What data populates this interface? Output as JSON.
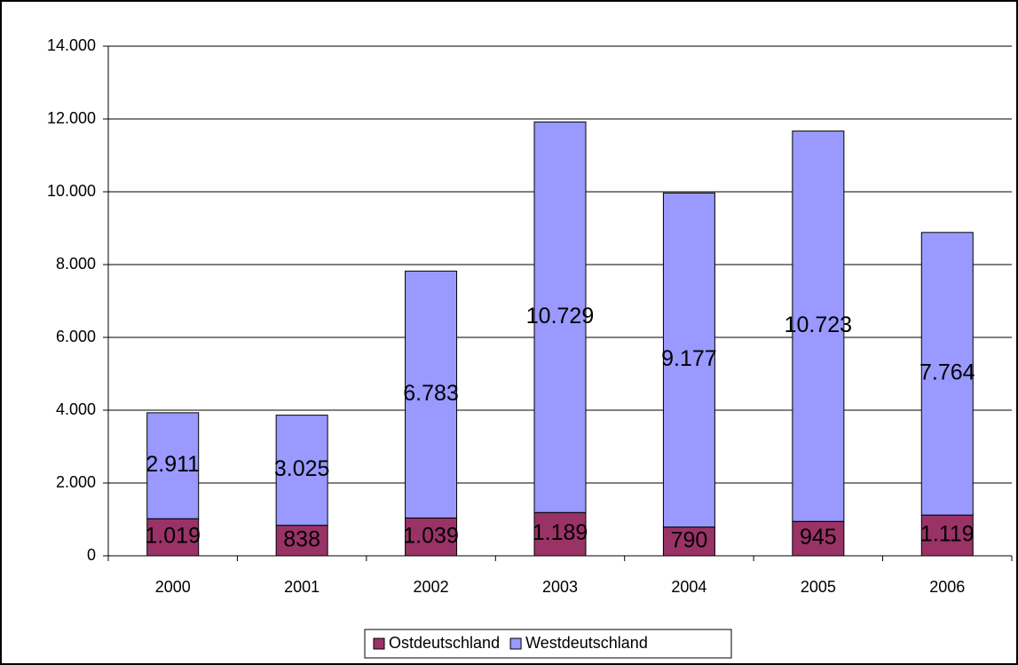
{
  "chart_data": {
    "type": "stacked_bar",
    "categories": [
      "2000",
      "2001",
      "2002",
      "2003",
      "2004",
      "2005",
      "2006"
    ],
    "series": [
      {
        "name": "Ostdeutschland",
        "color": "#993366",
        "values": [
          1019,
          838,
          1039,
          1189,
          790,
          945,
          1119
        ],
        "value_labels": [
          "1.019",
          "838",
          "1.039",
          "1.189",
          "790",
          "945",
          "1.119"
        ]
      },
      {
        "name": "Westdeutschland",
        "color": "#9999ff",
        "values": [
          2911,
          3025,
          6783,
          10729,
          9177,
          10723,
          7764
        ],
        "value_labels": [
          "2.911",
          "3.025",
          "6.783",
          "10.729",
          "9.177",
          "10.723",
          "7.764"
        ]
      }
    ],
    "ylim": [
      0,
      14000
    ],
    "yticks": [
      0,
      {
        "value": 2000,
        "label": "2.000"
      },
      {
        "value": 4000,
        "label": "4.000"
      },
      {
        "value": 6000,
        "label": "6.000"
      },
      {
        "value": 8000,
        "label": "8.000"
      },
      {
        "value": 10000,
        "label": "10.000"
      },
      {
        "value": 12000,
        "label": "12.000"
      },
      {
        "value": 14000,
        "label": "14.000"
      }
    ],
    "grid": true,
    "legend": "bottom"
  }
}
